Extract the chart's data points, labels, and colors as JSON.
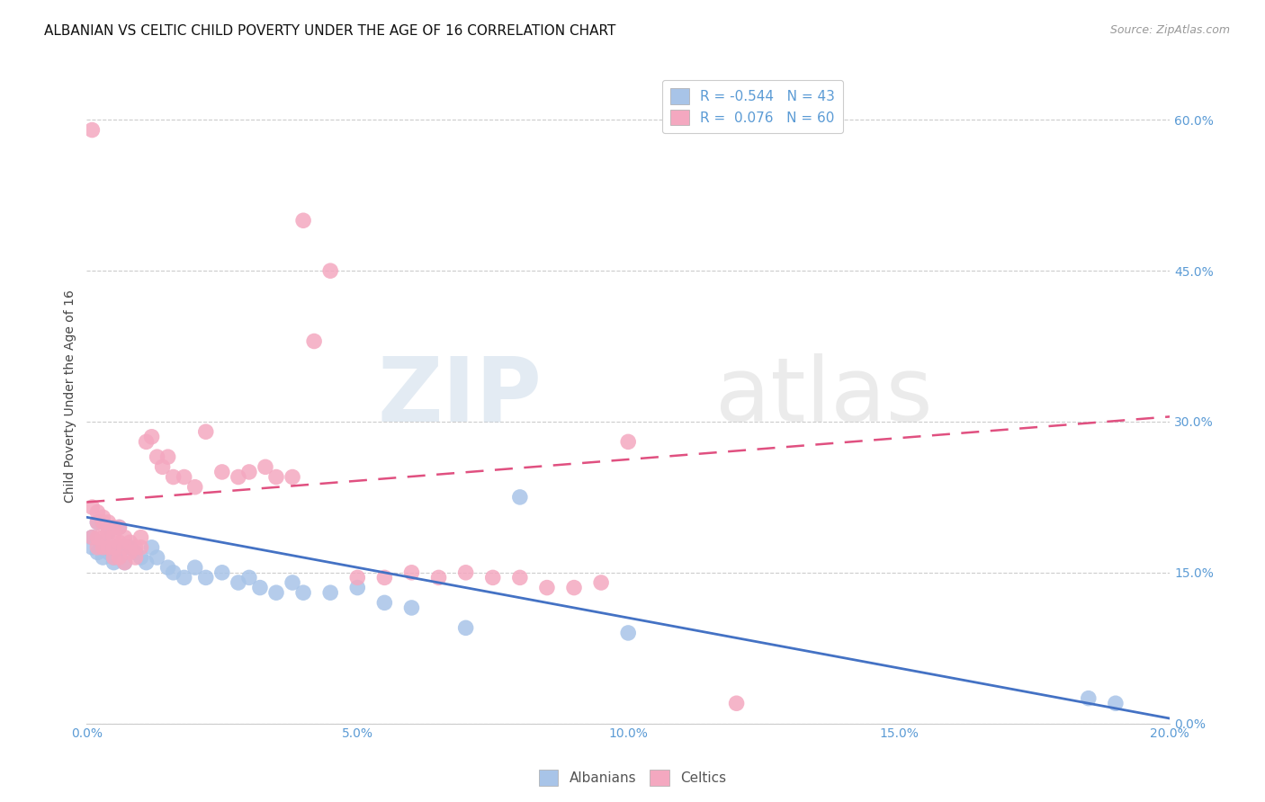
{
  "title": "ALBANIAN VS CELTIC CHILD POVERTY UNDER THE AGE OF 16 CORRELATION CHART",
  "source": "Source: ZipAtlas.com",
  "ylabel": "Child Poverty Under the Age of 16",
  "watermark_zip": "ZIP",
  "watermark_atlas": "atlas",
  "xlim": [
    0.0,
    0.2
  ],
  "ylim": [
    0.0,
    0.65
  ],
  "xticks": [
    0.0,
    0.05,
    0.1,
    0.15,
    0.2
  ],
  "yticks": [
    0.0,
    0.15,
    0.3,
    0.45,
    0.6
  ],
  "ytick_labels_right": [
    "0.0%",
    "15.0%",
    "30.0%",
    "45.0%",
    "60.0%"
  ],
  "xtick_labels": [
    "0.0%",
    "5.0%",
    "10.0%",
    "15.0%",
    "20.0%"
  ],
  "albanian_label": "Albanians",
  "celtic_label": "Celtics",
  "albanian_dot_color": "#a8c4e8",
  "celtic_dot_color": "#f4a8c0",
  "albanian_line_color": "#4472c4",
  "celtic_line_color": "#e05080",
  "albanian_R": -0.544,
  "albanian_N": 43,
  "celtic_R": 0.076,
  "celtic_N": 60,
  "axis_color": "#5b9bd5",
  "grid_color": "#cccccc",
  "background_color": "#ffffff",
  "title_fontsize": 11,
  "label_fontsize": 10,
  "legend_fontsize": 11,
  "dot_size": 160,
  "albanian_x": [
    0.001,
    0.001,
    0.002,
    0.002,
    0.003,
    0.003,
    0.003,
    0.004,
    0.004,
    0.005,
    0.005,
    0.005,
    0.006,
    0.006,
    0.007,
    0.007,
    0.008,
    0.009,
    0.01,
    0.011,
    0.012,
    0.013,
    0.015,
    0.016,
    0.018,
    0.02,
    0.022,
    0.025,
    0.028,
    0.03,
    0.032,
    0.035,
    0.038,
    0.04,
    0.045,
    0.05,
    0.055,
    0.06,
    0.07,
    0.08,
    0.1,
    0.185,
    0.19
  ],
  "albanian_y": [
    0.185,
    0.175,
    0.2,
    0.17,
    0.18,
    0.175,
    0.165,
    0.19,
    0.17,
    0.175,
    0.165,
    0.16,
    0.195,
    0.165,
    0.175,
    0.16,
    0.175,
    0.17,
    0.165,
    0.16,
    0.175,
    0.165,
    0.155,
    0.15,
    0.145,
    0.155,
    0.145,
    0.15,
    0.14,
    0.145,
    0.135,
    0.13,
    0.14,
    0.13,
    0.13,
    0.135,
    0.12,
    0.115,
    0.095,
    0.225,
    0.09,
    0.025,
    0.02
  ],
  "celtic_x": [
    0.001,
    0.001,
    0.001,
    0.002,
    0.002,
    0.002,
    0.002,
    0.003,
    0.003,
    0.003,
    0.003,
    0.004,
    0.004,
    0.004,
    0.005,
    0.005,
    0.005,
    0.005,
    0.006,
    0.006,
    0.006,
    0.007,
    0.007,
    0.007,
    0.008,
    0.008,
    0.009,
    0.009,
    0.01,
    0.01,
    0.011,
    0.012,
    0.013,
    0.014,
    0.015,
    0.016,
    0.018,
    0.02,
    0.022,
    0.025,
    0.028,
    0.03,
    0.033,
    0.035,
    0.038,
    0.04,
    0.042,
    0.045,
    0.05,
    0.055,
    0.06,
    0.065,
    0.07,
    0.075,
    0.08,
    0.085,
    0.09,
    0.095,
    0.1,
    0.12
  ],
  "celtic_y": [
    0.59,
    0.215,
    0.185,
    0.21,
    0.2,
    0.185,
    0.175,
    0.205,
    0.2,
    0.185,
    0.175,
    0.2,
    0.19,
    0.175,
    0.195,
    0.185,
    0.175,
    0.165,
    0.195,
    0.18,
    0.165,
    0.185,
    0.175,
    0.16,
    0.18,
    0.17,
    0.175,
    0.165,
    0.185,
    0.175,
    0.28,
    0.285,
    0.265,
    0.255,
    0.265,
    0.245,
    0.245,
    0.235,
    0.29,
    0.25,
    0.245,
    0.25,
    0.255,
    0.245,
    0.245,
    0.5,
    0.38,
    0.45,
    0.145,
    0.145,
    0.15,
    0.145,
    0.15,
    0.145,
    0.145,
    0.135,
    0.135,
    0.14,
    0.28,
    0.02
  ]
}
